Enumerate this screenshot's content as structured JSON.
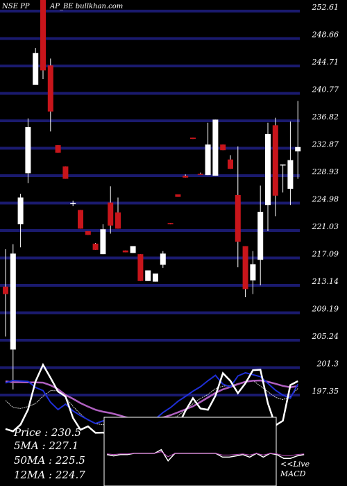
{
  "header": {
    "symbol": "NSE PP",
    "source": "AP_BE bullkhan.com"
  },
  "colors": {
    "background": "#000000",
    "grid": "#1a1a6e",
    "up": "#ffffff",
    "down": "#c8151b",
    "ma_white": "#ffffff",
    "ma_blue": "#1f2fd6",
    "ma_purple": "#b060c0",
    "macd_line": "#ffffff",
    "macd_signal": "#c050c0"
  },
  "price_panel": {
    "labels": [
      "252.61",
      "248.66",
      "244.71",
      "240.77",
      "236.82",
      "232.87",
      "228.93",
      "224.98",
      "221.03",
      "217.09",
      "213.14",
      "209.19",
      "205.24",
      "201.3",
      "197.35"
    ]
  },
  "info": {
    "price": "Price   : 230.5",
    "ma5": "5MA : 227.1",
    "ma50": "50MA : 225.5",
    "ma12": "12MA : 224.7"
  },
  "macd_panel": {
    "label_live": "<<Live",
    "label_macd": "MACD"
  },
  "chart_data": {
    "type": "candlestick",
    "ylim": [
      196.0,
      253.5
    ],
    "candles": [
      {
        "o": 207.5,
        "h": 213.5,
        "l": 199.5,
        "c": 206.3
      },
      {
        "o": 197.4,
        "h": 214.3,
        "l": 191.0,
        "c": 212.8
      },
      {
        "o": 217.5,
        "h": 222.4,
        "l": 213.8,
        "c": 221.8
      },
      {
        "o": 225.7,
        "h": 234.5,
        "l": 224.1,
        "c": 233.1
      },
      {
        "o": 239.9,
        "h": 245.8,
        "l": 239.9,
        "c": 245.0
      },
      {
        "o": 253.5,
        "h": 258.0,
        "l": 240.8,
        "c": 242.2
      },
      {
        "o": 243.0,
        "h": 244.1,
        "l": 232.4,
        "c": 235.6
      },
      {
        "o": 230.2,
        "h": 230.2,
        "l": 229.0,
        "c": 229.0
      },
      {
        "o": 226.8,
        "h": 226.8,
        "l": 224.8,
        "c": 224.8
      },
      {
        "o": 220.9,
        "h": 221.3,
        "l": 220.4,
        "c": 220.9
      },
      {
        "o": 219.8,
        "h": 219.8,
        "l": 216.8,
        "c": 216.8
      },
      {
        "o": 216.4,
        "h": 216.4,
        "l": 215.8,
        "c": 215.8
      },
      {
        "o": 214.4,
        "h": 214.5,
        "l": 213.4,
        "c": 213.4
      },
      {
        "o": 212.7,
        "h": 217.5,
        "l": 212.7,
        "c": 216.7
      },
      {
        "o": 221.0,
        "h": 223.6,
        "l": 216.0,
        "c": 217.3
      },
      {
        "o": 219.4,
        "h": 221.8,
        "l": 216.8,
        "c": 216.8
      },
      {
        "o": 213.3,
        "h": 213.3,
        "l": 213.0,
        "c": 213.0
      },
      {
        "o": 212.9,
        "h": 214.0,
        "l": 212.9,
        "c": 214.0
      },
      {
        "o": 212.7,
        "h": 212.7,
        "l": 208.4,
        "c": 208.4
      },
      {
        "o": 208.4,
        "h": 210.1,
        "l": 208.4,
        "c": 210.1
      },
      {
        "o": 208.3,
        "h": 209.6,
        "l": 208.3,
        "c": 209.6
      },
      {
        "o": 211.0,
        "h": 213.2,
        "l": 210.5,
        "c": 212.8
      },
      {
        "o": 217.7,
        "h": 217.7,
        "l": 217.5,
        "c": 217.5
      },
      {
        "o": 222.3,
        "h": 222.3,
        "l": 221.9,
        "c": 221.9
      },
      {
        "o": 225.3,
        "h": 225.5,
        "l": 225.0,
        "c": 225.0
      },
      {
        "o": 231.4,
        "h": 231.4,
        "l": 231.2,
        "c": 231.2
      },
      {
        "o": 225.6,
        "h": 225.8,
        "l": 225.5,
        "c": 225.5
      },
      {
        "o": 225.4,
        "h": 233.8,
        "l": 225.4,
        "c": 230.3
      },
      {
        "o": 225.3,
        "h": 234.3,
        "l": 225.3,
        "c": 234.3
      },
      {
        "o": 230.3,
        "h": 230.3,
        "l": 229.4,
        "c": 229.4
      },
      {
        "o": 227.9,
        "h": 228.6,
        "l": 226.4,
        "c": 226.4
      },
      {
        "o": 222.2,
        "h": 230.0,
        "l": 210.6,
        "c": 214.7
      },
      {
        "o": 214.0,
        "h": 214.0,
        "l": 205.8,
        "c": 207.1
      },
      {
        "o": 208.5,
        "h": 213.2,
        "l": 206.3,
        "c": 211.1
      },
      {
        "o": 211.8,
        "h": 223.7,
        "l": 207.7,
        "c": 219.5
      },
      {
        "o": 220.6,
        "h": 233.8,
        "l": 216.4,
        "c": 232.0
      },
      {
        "o": 233.4,
        "h": 234.6,
        "l": 218.8,
        "c": 222.1
      },
      {
        "o": 227.1,
        "h": 227.1,
        "l": 222.6,
        "c": 227.1
      },
      {
        "o": 223.2,
        "h": 234.0,
        "l": 220.6,
        "c": 227.8
      },
      {
        "o": 229.2,
        "h": 237.3,
        "l": 224.8,
        "c": 229.9
      }
    ],
    "macd": [
      3.4,
      4.5,
      4.3,
      4.1,
      1.3,
      -0.2,
      -5.6,
      -9.0,
      -6.5,
      -9.6,
      -11.8,
      -13.7,
      -15.5,
      -14.3,
      -14.1,
      -14.4,
      -16.3,
      -16.8,
      -15.9,
      -15.8,
      -13.4,
      -10.4,
      -8.1,
      -5.2,
      -2.9,
      -0.5,
      1.6,
      4.4,
      6.9,
      2.8,
      1.5,
      6.6,
      8.1,
      7.2,
      6.3,
      3.2,
      0.0,
      -2.3,
      -3.7,
      2.8
    ],
    "signal": [
      4.1,
      3.7,
      3.7,
      3.6,
      3.6,
      3.5,
      2.3,
      0.5,
      -2.2,
      -4.0,
      -6.0,
      -7.6,
      -9.1,
      -10.0,
      -10.6,
      -11.5,
      -12.5,
      -13.4,
      -13.7,
      -13.7,
      -13.3,
      -12.7,
      -11.6,
      -10.3,
      -8.9,
      -7.5,
      -5.5,
      -3.4,
      -1.3,
      0.4,
      1.5,
      2.8,
      3.9,
      4.4,
      4.5,
      3.9,
      3.0,
      2.0,
      1.4,
      1.9
    ],
    "fast": [
      -4.8,
      -8.0,
      -8.5,
      -7.6,
      -6.2,
      -2.8,
      -0.2,
      -0.3,
      -3.4,
      -7.5,
      -11.1,
      -13.9,
      -15.6,
      -16.0,
      -16.1,
      -17.2,
      -17.8,
      -19.6,
      -18.6,
      -18.3,
      -17.0,
      -15.9,
      -13.8,
      -11.9,
      -9.2,
      -6.3,
      -3.8,
      -2.0,
      0.7,
      1.9,
      2.1,
      3.1,
      3.6,
      4.5,
      1.9,
      -0.7,
      -3.3,
      -4.4,
      -2.9,
      0.8
    ],
    "hist_line": [
      -18.0,
      -19.1,
      -16.0,
      -9.0,
      4.1,
      11.8,
      5.7,
      -0.6,
      -2.9,
      -12.9,
      -18.4,
      -16.8,
      -19.8,
      -19.7,
      -20.6,
      -21.7,
      -20.8,
      -24.8,
      -25.9,
      -25.8,
      -23.1,
      -22.9,
      -20.2,
      -16.5,
      -9.6,
      -3.7,
      -8.5,
      -9.1,
      -2.6,
      7.9,
      4.3,
      -1.4,
      3.2,
      9.3,
      9.5,
      -6.1,
      -16.4,
      -14.2,
      2.4,
      4.2
    ],
    "macd_hist": [
      0,
      0,
      0,
      0,
      0,
      0,
      0,
      0,
      0,
      0,
      -0.1,
      -0.2,
      -0.1,
      -0.1,
      0.0,
      0.0,
      0.0,
      0.0,
      0.3,
      -0.6,
      0.0,
      0.0,
      0.0,
      0.0,
      0.0,
      0.0,
      0.0,
      -0.3,
      -0.3,
      -0.2,
      -0.1,
      -0.3,
      0.0,
      -0.3,
      0.0,
      -0.1,
      -0.4,
      -0.4,
      -0.2,
      -0.1
    ],
    "macd_hist_start": 10
  }
}
